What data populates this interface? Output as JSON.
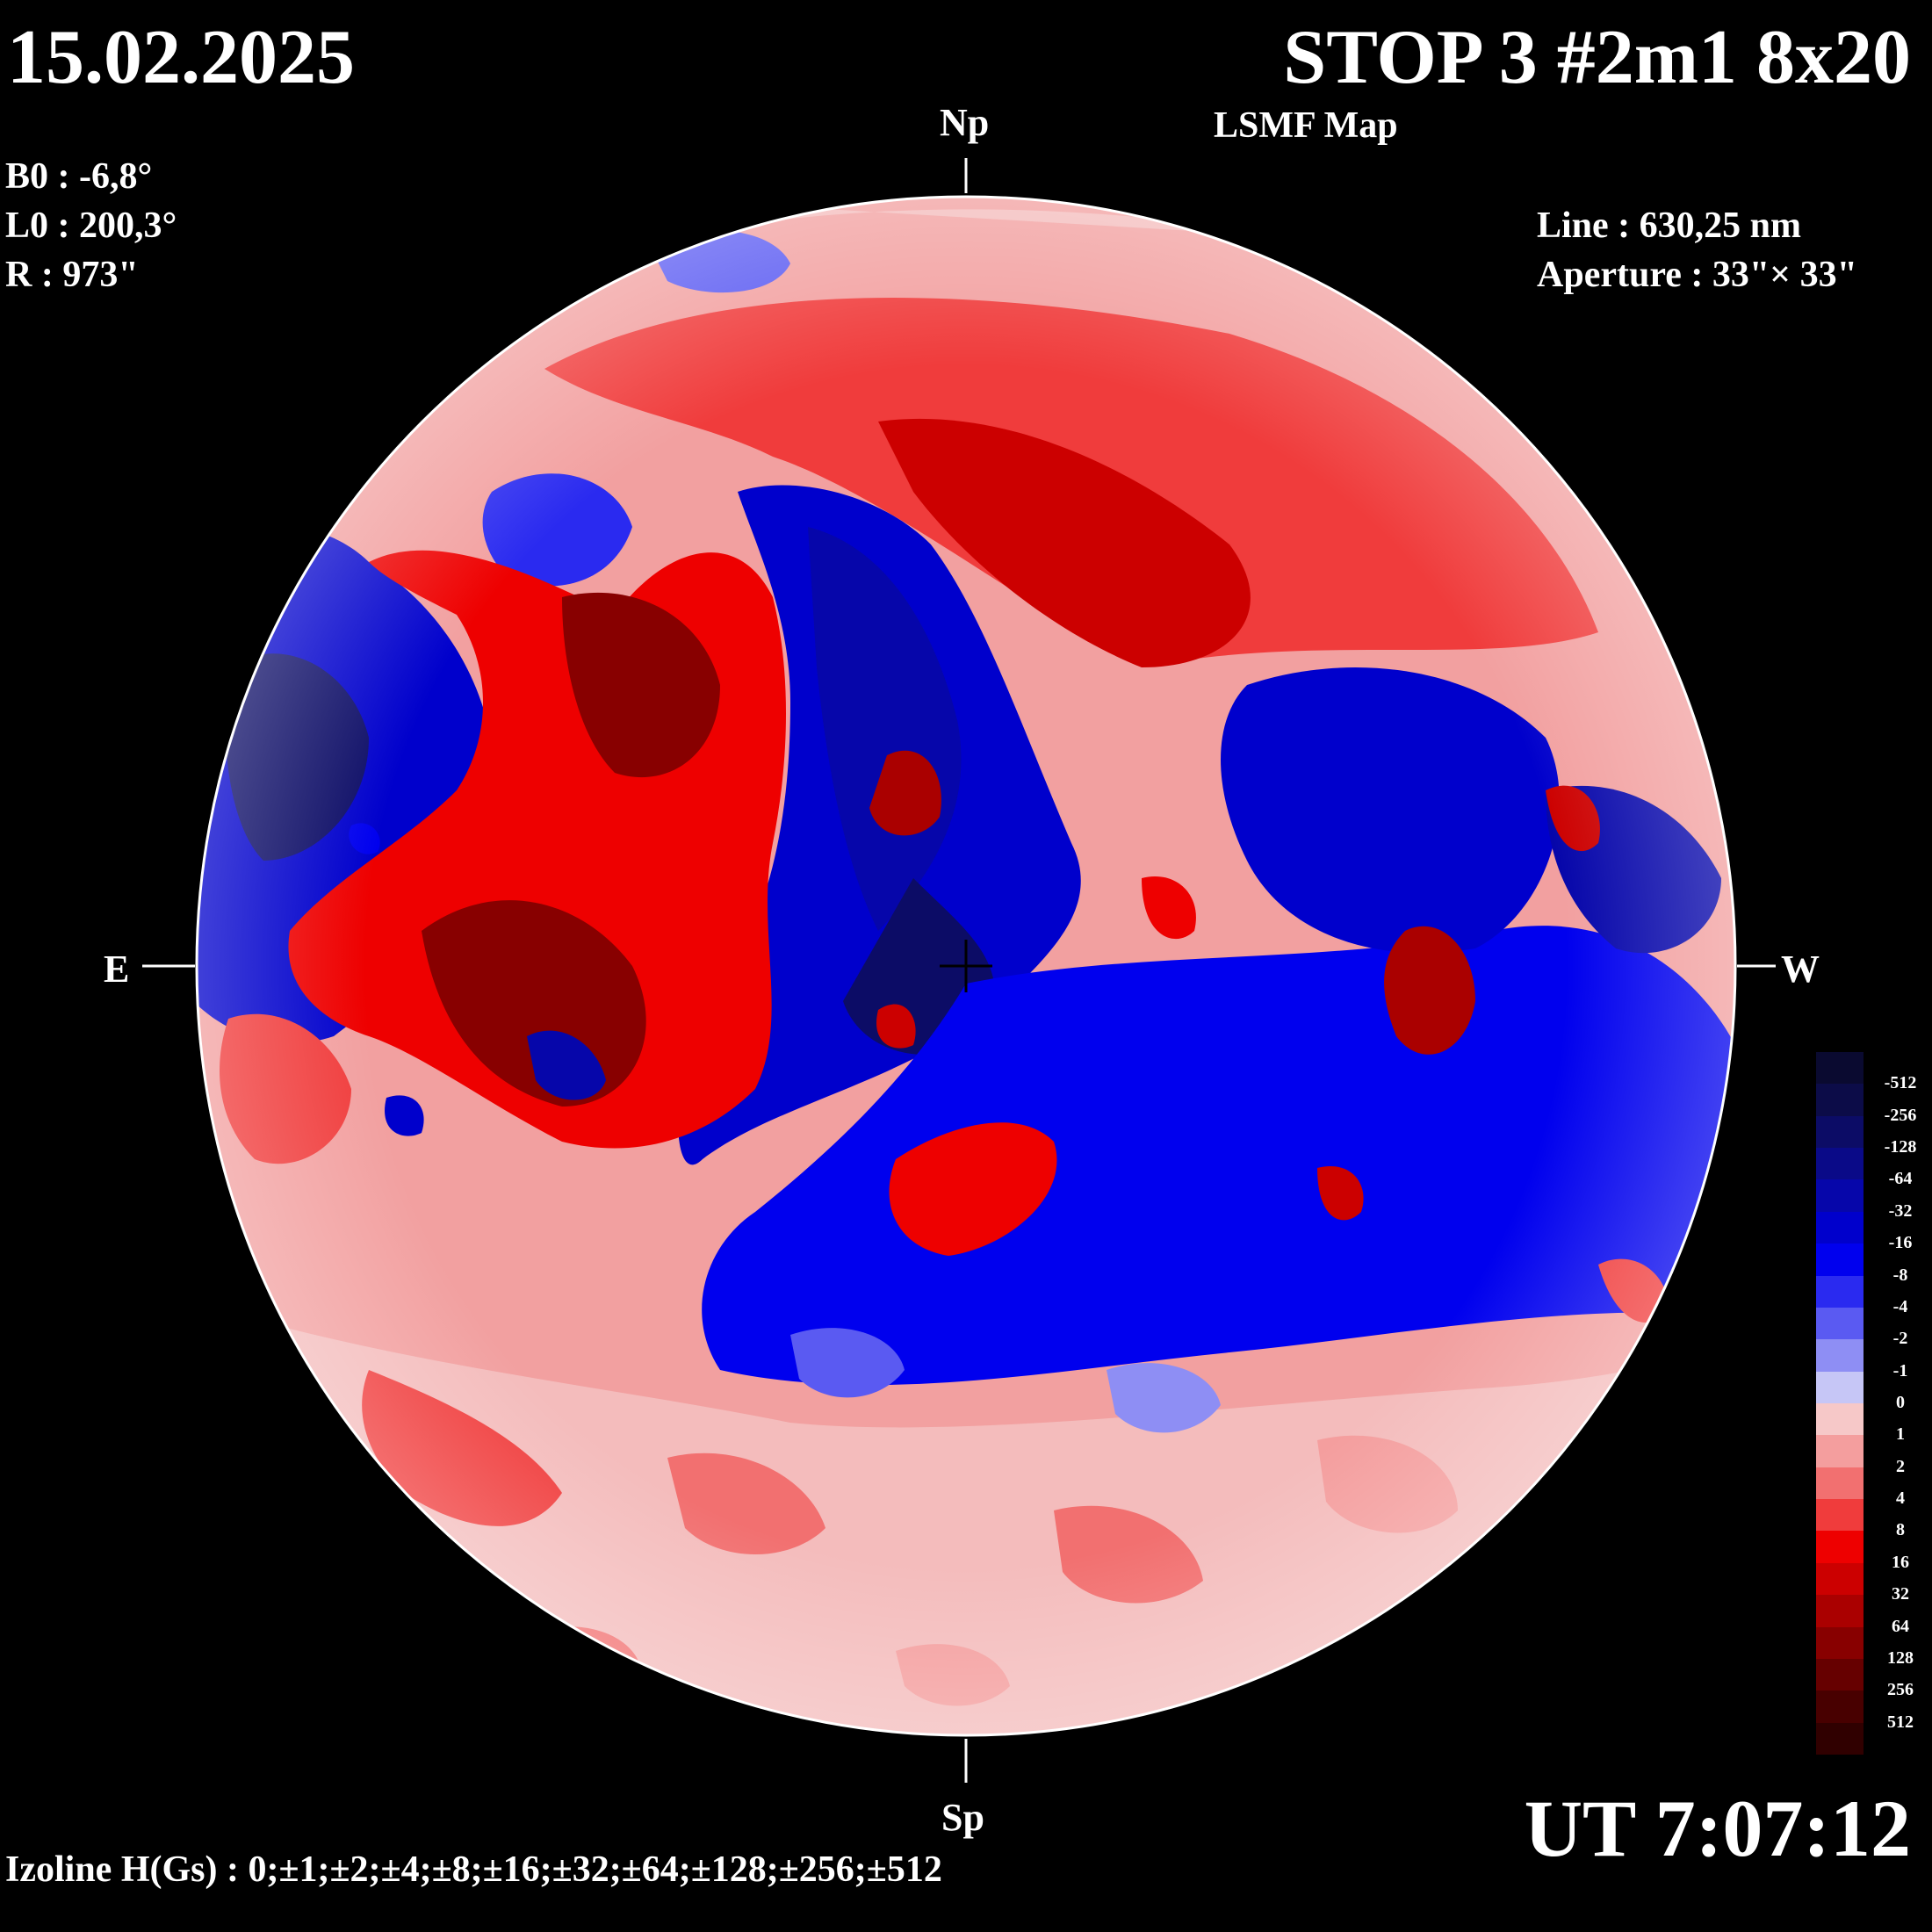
{
  "header": {
    "date": "15.02.2025",
    "title": "STOP 3 #2m1 8x20",
    "subtitle": "LSMF  Map"
  },
  "params": {
    "b0": "B0 : -6,8°",
    "l0": "L0 : 200,3°",
    "r": "R  : 973\""
  },
  "instrument": {
    "line": "Line :  630,25 nm",
    "aperture": "Aperture : 33\"× 33\""
  },
  "directions": {
    "north": "Np",
    "south": "Sp",
    "east": "E",
    "west": "W"
  },
  "time": "UT 7:07:12",
  "isolines": "Izoline H(Gs) : 0;±1;±2;±4;±8;±16;±32;±64;±128;±256;±512",
  "colorbar": {
    "labels": [
      "-512",
      "-256",
      "-128",
      "-64",
      "-32",
      "-16",
      "-8",
      "-4",
      "-2",
      "-1",
      "0",
      "1",
      "2",
      "4",
      "8",
      "16",
      "32",
      "64",
      "128",
      "256",
      "512"
    ],
    "colors": [
      "#0a0a30",
      "#0c0c48",
      "#0c0c66",
      "#0a0a88",
      "#0606aa",
      "#0000cc",
      "#0000ee",
      "#2a2af0",
      "#5a5af2",
      "#8e8ef4",
      "#c6c6f6",
      "#f6c8c8",
      "#f49e9e",
      "#f27070",
      "#f03c3c",
      "#ee0000",
      "#cc0000",
      "#aa0000",
      "#880000",
      "#660000",
      "#480000",
      "#300000"
    ]
  }
}
